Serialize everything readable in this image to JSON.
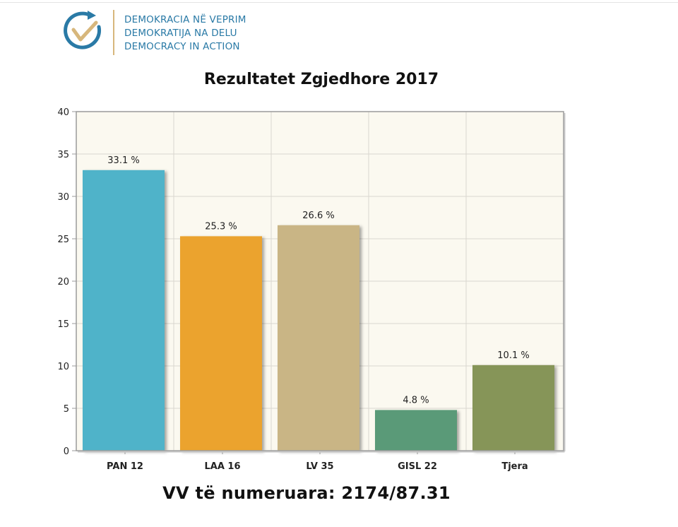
{
  "logo": {
    "lines": [
      "DEMOKRACIA NË VEPRIM",
      "DEMOKRATIJA NA DELU",
      "DEMOCRACY IN ACTION"
    ],
    "colors": {
      "text": "#2a7aa6",
      "accent": "#d7b77c",
      "ring": "#2a7aa6"
    }
  },
  "chart_data": {
    "type": "bar",
    "title": "Rezultatet Zgjedhore 2017",
    "categories": [
      "PAN 12",
      "LAA 16",
      "LV 35",
      "GISL 22",
      "Tjera"
    ],
    "values": [
      33.1,
      25.3,
      26.6,
      4.8,
      10.1
    ],
    "data_labels": [
      "33.1 %",
      "25.3 %",
      "26.6 %",
      "4.8 %",
      "10.1 %"
    ],
    "colors": [
      "#4fb3c9",
      "#eba32d",
      "#c9b585",
      "#5a9a78",
      "#869558"
    ],
    "ylim": [
      0,
      40
    ],
    "yticks": [
      0,
      5,
      10,
      15,
      20,
      25,
      30,
      35,
      40
    ],
    "xlabel": "",
    "ylabel": "",
    "grid": true,
    "plot_background": "#fbf9f0"
  },
  "footer": "VV të numeruara: 2174/87.31"
}
